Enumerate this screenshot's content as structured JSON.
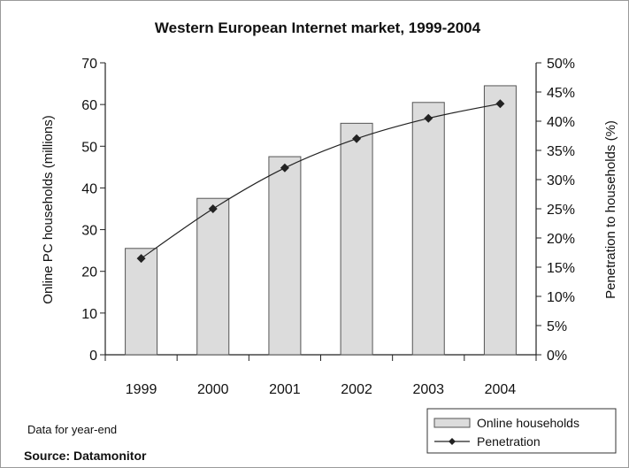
{
  "chart_data": {
    "type": "bar",
    "title": "Western European Internet market, 1999-2004",
    "categories": [
      "1999",
      "2000",
      "2001",
      "2002",
      "2003",
      "2004"
    ],
    "series": [
      {
        "name": "Online households",
        "type": "bar",
        "axis": "left",
        "values": [
          25.5,
          37.5,
          47.5,
          55.5,
          60.5,
          64.5
        ]
      },
      {
        "name": "Penetration",
        "type": "line",
        "axis": "right",
        "values": [
          16.5,
          25,
          32,
          37,
          40.5,
          43
        ]
      }
    ],
    "ylabel": "Online PC households (millions)",
    "ylim": [
      0,
      70
    ],
    "yticks": [
      "0",
      "10",
      "20",
      "30",
      "40",
      "50",
      "60",
      "70"
    ],
    "y2label": "Penetration to households (%)",
    "y2lim": [
      0,
      50
    ],
    "y2ticks": [
      "0%",
      "5%",
      "10%",
      "15%",
      "20%",
      "25%",
      "30%",
      "35%",
      "40%",
      "45%",
      "50%"
    ],
    "grid": false,
    "legend_position": "bottom-right",
    "colors": {
      "bar_fill": "#dcdcdc",
      "bar_stroke": "#555555",
      "line": "#222222"
    }
  },
  "notes": {
    "data_note": "Data for year-end",
    "source": "Source: Datamonitor"
  }
}
